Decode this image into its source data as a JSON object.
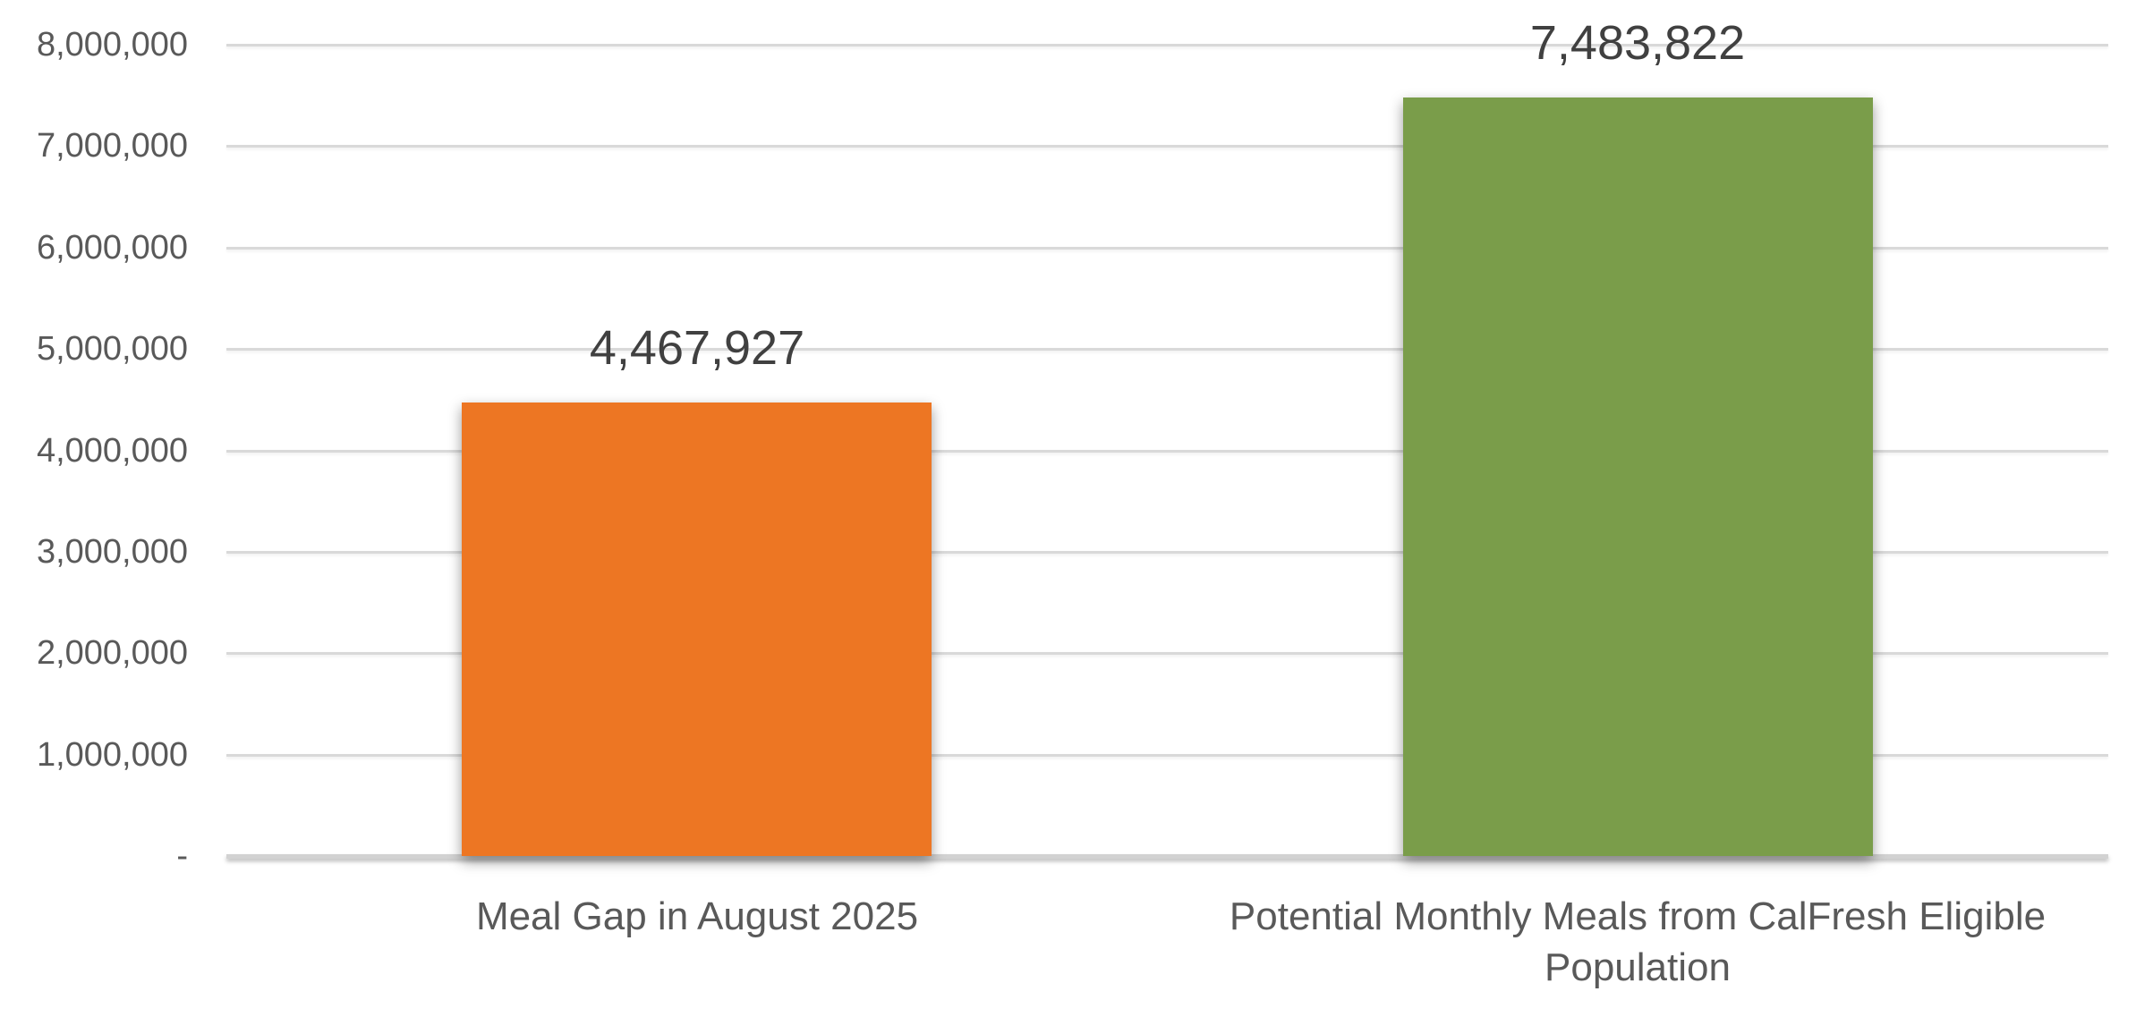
{
  "chart_data": {
    "type": "bar",
    "categories": [
      "Meal Gap in August 2025",
      "Potential Monthly Meals from CalFresh Eligible Population"
    ],
    "values": [
      4467927,
      7483822
    ],
    "value_labels": [
      "4,467,927",
      "7,483,822"
    ],
    "bar_colors": [
      "#ED7623",
      "#7A9D4A"
    ],
    "title": "",
    "xlabel": "",
    "ylabel": "",
    "ylim": [
      0,
      8000000
    ],
    "ytick_interval": 1000000,
    "ytick_labels": [
      "-",
      "1,000,000",
      "2,000,000",
      "3,000,000",
      "4,000,000",
      "5,000,000",
      "6,000,000",
      "7,000,000",
      "8,000,000"
    ],
    "grid": "horizontal-only",
    "legend_position": "none"
  },
  "colors": {
    "gridline": "#D9D9D9",
    "axis_line": "#D2D2D2",
    "ytick_text": "#595959",
    "category_text": "#595959",
    "value_label_text": "#404040",
    "background": "#FFFFFF"
  }
}
